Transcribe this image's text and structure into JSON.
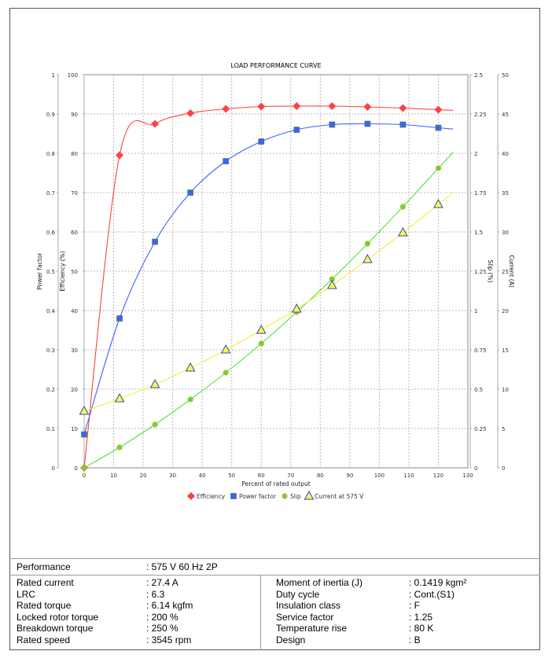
{
  "chart_data": {
    "type": "line",
    "title": "LOAD PERFORMANCE CURVE",
    "xlabel": "Percent of rated output",
    "xlim": [
      0,
      130
    ],
    "xticks": [
      0,
      10,
      20,
      30,
      40,
      50,
      60,
      70,
      80,
      90,
      100,
      110,
      120,
      130
    ],
    "x": [
      0,
      12,
      24,
      36,
      48,
      60,
      72,
      84,
      96,
      108,
      120
    ],
    "grid": true,
    "legend_position": "bottom",
    "axes": {
      "power_factor": {
        "label": "Power factor",
        "lim": [
          0,
          1
        ],
        "ticks": [
          "0",
          "0.1",
          "0.2",
          "0.3",
          "0.4",
          "0.5",
          "0.6",
          "0.7",
          "0.8",
          "0.9",
          "1"
        ]
      },
      "efficiency": {
        "label": "Efficiency (%)",
        "lim": [
          0,
          100
        ],
        "ticks": [
          "0",
          "10",
          "20",
          "30",
          "40",
          "50",
          "60",
          "70",
          "80",
          "90",
          "100"
        ]
      },
      "slip": {
        "label": "Slip (%)",
        "lim": [
          0,
          2.5
        ],
        "ticks": [
          "0",
          "0.25",
          "0.5",
          "0.75",
          "1",
          "1.25",
          "1.5",
          "1.75",
          "2",
          "2.25",
          "2.5"
        ]
      },
      "current": {
        "label": "Current (A)",
        "lim": [
          0,
          50
        ],
        "ticks": [
          "0",
          "5",
          "10",
          "15",
          "20",
          "25",
          "30",
          "35",
          "40",
          "45",
          "50"
        ]
      }
    },
    "series": [
      {
        "name": "Efficiency",
        "axis": "efficiency",
        "color": "#ff4040",
        "marker": "diamond",
        "values": [
          0,
          79.5,
          87.5,
          90.2,
          91.3,
          91.9,
          92.0,
          92.0,
          91.8,
          91.5,
          91.1
        ]
      },
      {
        "name": "Power factor",
        "axis": "power_factor",
        "color": "#4060ff",
        "marker": "square",
        "values": [
          0.085,
          0.38,
          0.575,
          0.7,
          0.78,
          0.83,
          0.86,
          0.873,
          0.875,
          0.873,
          0.865
        ]
      },
      {
        "name": "Slip",
        "axis": "slip",
        "color": "#50e040",
        "marker": "circle",
        "values": [
          0,
          0.13,
          0.275,
          0.435,
          0.605,
          0.79,
          0.99,
          1.2,
          1.425,
          1.66,
          1.905
        ]
      },
      {
        "name": "Current at 575 V",
        "axis": "current",
        "color": "#ffff40",
        "marker": "triangle",
        "values": [
          7.2,
          8.8,
          10.6,
          12.7,
          15.0,
          17.5,
          20.2,
          23.2,
          26.5,
          29.9,
          33.5
        ]
      }
    ]
  },
  "performance": {
    "label": "Performance",
    "value": ": 575 V 60 Hz 2P"
  },
  "specs_left": [
    {
      "label": "Rated current",
      "value": ": 27.4 A"
    },
    {
      "label": "LRC",
      "value": ": 6.3"
    },
    {
      "label": "Rated torque",
      "value": ": 6.14 kgfm"
    },
    {
      "label": "Locked rotor torque",
      "value": ": 200 %"
    },
    {
      "label": "Breakdown torque",
      "value": ": 250 %"
    },
    {
      "label": "Rated speed",
      "value": ": 3545 rpm"
    }
  ],
  "specs_right": [
    {
      "label": "Moment of inertia (J)",
      "value": ": 0.1419 kgm²"
    },
    {
      "label": "Duty cycle",
      "value": ": Cont.(S1)"
    },
    {
      "label": "Insulation class",
      "value": ": F"
    },
    {
      "label": "Service factor",
      "value": ": 1.25"
    },
    {
      "label": "Temperature rise",
      "value": ": 80 K"
    },
    {
      "label": "Design",
      "value": ": B"
    }
  ]
}
